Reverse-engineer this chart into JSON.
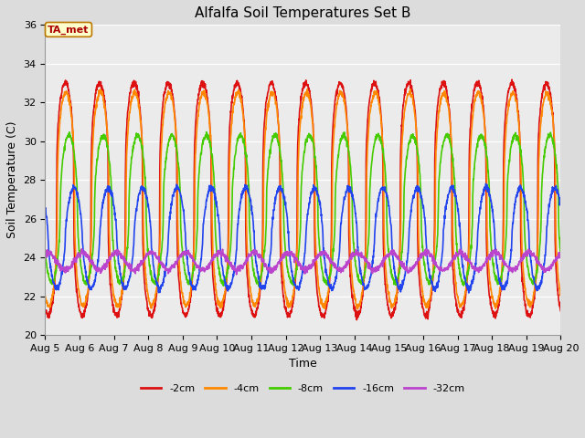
{
  "title": "Alfalfa Soil Temperatures Set B",
  "xlabel": "Time",
  "ylabel": "Soil Temperature (C)",
  "ylim": [
    20,
    36
  ],
  "x_tick_labels": [
    "Aug 5",
    "Aug 6",
    "Aug 7",
    "Aug 8",
    "Aug 9",
    "Aug 10",
    "Aug 11",
    "Aug 12",
    "Aug 13",
    "Aug 14",
    "Aug 15",
    "Aug 16",
    "Aug 17",
    "Aug 18",
    "Aug 19",
    "Aug 20"
  ],
  "background_color": "#dcdcdc",
  "plot_bg_color": "#ebebeb",
  "series": [
    {
      "label": "-2cm",
      "color": "#dd1111",
      "mean": 27.0,
      "amplitude": 6.0,
      "phase_hours": 2.0,
      "lag_hours": 0.0,
      "sharpness": 3.0
    },
    {
      "label": "-4cm",
      "color": "#ff8800",
      "mean": 27.0,
      "amplitude": 5.5,
      "phase_hours": 2.0,
      "lag_hours": 0.5,
      "sharpness": 2.5
    },
    {
      "label": "-8cm",
      "color": "#44cc00",
      "mean": 26.5,
      "amplitude": 3.8,
      "phase_hours": 2.0,
      "lag_hours": 2.5,
      "sharpness": 2.0
    },
    {
      "label": "-16cm",
      "color": "#2244ee",
      "mean": 25.0,
      "amplitude": 2.6,
      "phase_hours": 2.0,
      "lag_hours": 6.0,
      "sharpness": 1.5
    },
    {
      "label": "-32cm",
      "color": "#bb44cc",
      "mean": 23.8,
      "amplitude": 0.45,
      "phase_hours": 2.0,
      "lag_hours": 12.0,
      "sharpness": 1.0
    }
  ],
  "ta_met_box": {
    "text": "TA_met",
    "fontsize": 8,
    "text_color": "#aa0000",
    "bg_color": "#ffffcc",
    "edge_color": "#bb7700"
  },
  "title_fontsize": 11,
  "axis_label_fontsize": 9,
  "tick_fontsize": 8,
  "linewidth": 1.2,
  "samples_per_day": 144,
  "total_days": 15
}
